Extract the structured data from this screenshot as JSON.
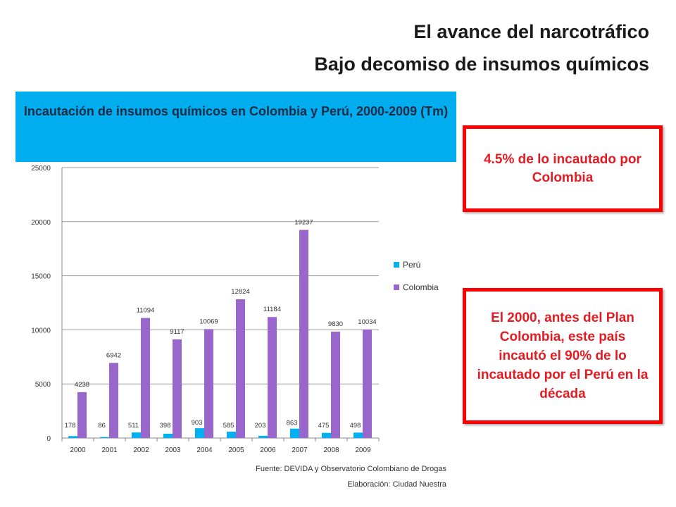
{
  "slide": {
    "title_line1": "El avance del narcotráfico",
    "title_line2": "Bajo decomiso de insumos químicos"
  },
  "callouts": {
    "first": "4.5% de lo incautado por Colombia",
    "second": "El 2000, antes del Plan Colombia, este país incautó el 90% de lo incautado por el Perú en la década"
  },
  "footer": {
    "source": "Fuente: DEVIDA y Observatorio Colombiano de Drogas",
    "credit": "Elaboración: Ciudad Nuestra"
  },
  "colors": {
    "peru": "#00b0f0",
    "colombia": "#9966cc",
    "header": "#00aeef",
    "callout_border": "#ff0000"
  },
  "chart_data": {
    "type": "bar",
    "title": "Incautación de insumos químicos en Colombia y Perú, 2000-2009 (Tm)",
    "categories": [
      "2000",
      "2001",
      "2002",
      "2003",
      "2004",
      "2005",
      "2006",
      "2007",
      "2008",
      "2009"
    ],
    "series": [
      {
        "name": "Perú",
        "values": [
          178,
          86,
          511,
          398,
          903,
          585,
          203,
          863,
          475,
          498
        ]
      },
      {
        "name": "Colombia",
        "values": [
          4238,
          6942,
          11094,
          9117,
          10069,
          12824,
          11184,
          19237,
          9830,
          10034
        ]
      }
    ],
    "ylim": [
      0,
      25000
    ],
    "yticks": [
      0,
      5000,
      10000,
      15000,
      20000,
      25000
    ],
    "grid": true,
    "legend": "right"
  }
}
